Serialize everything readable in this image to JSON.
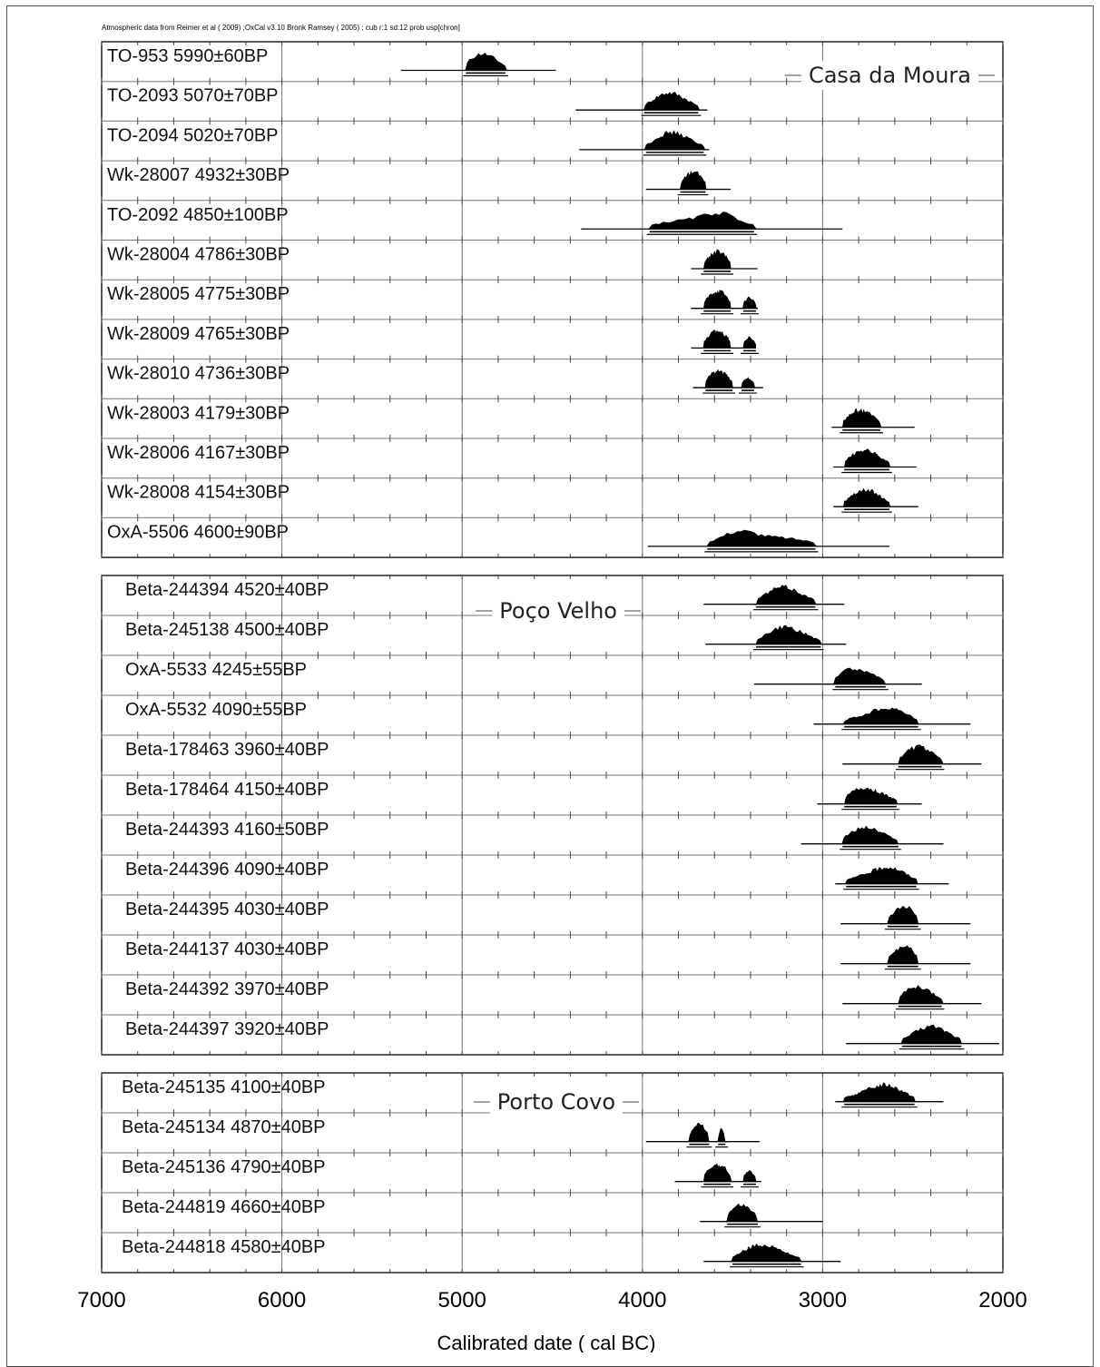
{
  "chart_data": {
    "type": "scatter",
    "subtype": "radiocarbon calibration multiplot (probability distributions with ranges)",
    "note": "Atmospheric data from Reimer et al  ( 2009) ;OxCal v3.10 Bronk Ramsey  ( 2005) ; cub r:1 sd:12 prob usp[chron]",
    "xlabel": "Calibrated date  ( cal BC)",
    "xlim": [
      7000,
      2000
    ],
    "x_reversed": true,
    "x_ticks": [
      "7000",
      "6000",
      "5000",
      "4000",
      "3000",
      "2000"
    ],
    "major_grid": [
      6000,
      5000,
      4000,
      3000
    ],
    "minor_tick_step": 200,
    "groups": [
      {
        "name": "Casa da Moura",
        "samples": [
          {
            "label": "TO-953  5990±60BP",
            "range_95": [
              5340,
              4480
            ],
            "peak": 4920,
            "mass": [
              [
                4980,
                4760
              ]
            ]
          },
          {
            "label": "TO-2093  5070±70BP",
            "range_95": [
              4370,
              3640
            ],
            "peak": 3860,
            "mass": [
              [
                3990,
                3690
              ]
            ]
          },
          {
            "label": "TO-2094  5020±70BP",
            "range_95": [
              4350,
              3630
            ],
            "peak": 3850,
            "mass": [
              [
                3980,
                3660
              ]
            ]
          },
          {
            "label": "Wk-28007  4932±30BP",
            "range_95": [
              3980,
              3510
            ],
            "peak": 3700,
            "mass": [
              [
                3790,
                3650
              ]
            ]
          },
          {
            "label": "TO-2092  4850±100BP",
            "range_95": [
              4340,
              2890
            ],
            "peak": 3560,
            "mass": [
              [
                3960,
                3380
              ]
            ]
          },
          {
            "label": "Wk-28004  4786±30BP",
            "range_95": [
              3730,
              3360
            ],
            "peak": 3570,
            "mass": [
              [
                3660,
                3510
              ]
            ]
          },
          {
            "label": "Wk-28005  4775±30BP",
            "range_95": [
              3730,
              3360
            ],
            "peak": 3570,
            "mass": [
              [
                3660,
                3510
              ],
              [
                3440,
                3370
              ]
            ]
          },
          {
            "label": "Wk-28009  4765±30BP",
            "range_95": [
              3730,
              3370
            ],
            "peak": 3580,
            "mass": [
              [
                3660,
                3510
              ],
              [
                3440,
                3370
              ]
            ]
          },
          {
            "label": "Wk-28010  4736±30BP",
            "range_95": [
              3720,
              3330
            ],
            "peak": 3600,
            "mass": [
              [
                3650,
                3500
              ],
              [
                3450,
                3380
              ]
            ]
          },
          {
            "label": "Wk-28003  4179±30BP",
            "range_95": [
              2950,
              2490
            ],
            "peak": 2800,
            "mass": [
              [
                2890,
                2680
              ]
            ]
          },
          {
            "label": "Wk-28006  4167±30BP",
            "range_95": [
              2940,
              2480
            ],
            "peak": 2790,
            "mass": [
              [
                2880,
                2630
              ]
            ]
          },
          {
            "label": "Wk-28008  4154±30BP",
            "range_95": [
              2940,
              2470
            ],
            "peak": 2780,
            "mass": [
              [
                2880,
                2630
              ]
            ]
          },
          {
            "label": "OxA-5506  4600±90BP",
            "range_95": [
              3970,
              2630
            ],
            "peak": 3480,
            "mass": [
              [
                3640,
                3040
              ]
            ]
          }
        ]
      },
      {
        "name": "Poço Velho",
        "samples": [
          {
            "label": "Beta-244394  4520±40BP",
            "range_95": [
              3660,
              2880
            ],
            "peak": 3230,
            "mass": [
              [
                3370,
                3040
              ]
            ]
          },
          {
            "label": "Beta-245138  4500±40BP",
            "range_95": [
              3650,
              2870
            ],
            "peak": 3220,
            "mass": [
              [
                3370,
                3010
              ]
            ]
          },
          {
            "label": "OxA-5533  4245±55BP",
            "range_95": [
              3380,
              2450
            ],
            "peak": 2880,
            "mass": [
              [
                2930,
                2650
              ]
            ]
          },
          {
            "label": "OxA-5532  4090±55BP",
            "range_95": [
              3050,
              2180
            ],
            "peak": 2620,
            "mass": [
              [
                2880,
                2470
              ]
            ]
          },
          {
            "label": "Beta-178463  3960±40BP",
            "range_95": [
              2890,
              2120
            ],
            "peak": 2480,
            "mass": [
              [
                2580,
                2340
              ]
            ]
          },
          {
            "label": "Beta-178464  4150±40BP",
            "range_95": [
              3030,
              2450
            ],
            "peak": 2800,
            "mass": [
              [
                2880,
                2590
              ]
            ]
          },
          {
            "label": "Beta-244393  4160±50BP",
            "range_95": [
              3120,
              2330
            ],
            "peak": 2790,
            "mass": [
              [
                2890,
                2580
              ]
            ]
          },
          {
            "label": "Beta-244396  4090±40BP",
            "range_95": [
              2930,
              2300
            ],
            "peak": 2620,
            "mass": [
              [
                2870,
                2480
              ]
            ]
          },
          {
            "label": "Beta-244395  4030±40BP",
            "range_95": [
              2900,
              2180
            ],
            "peak": 2520,
            "mass": [
              [
                2640,
                2470
              ]
            ]
          },
          {
            "label": "Beta-244137  4030±40BP",
            "range_95": [
              2900,
              2180
            ],
            "peak": 2520,
            "mass": [
              [
                2640,
                2470
              ]
            ]
          },
          {
            "label": "Beta-244392  3970±40BP",
            "range_95": [
              2890,
              2120
            ],
            "peak": 2500,
            "mass": [
              [
                2580,
                2340
              ]
            ]
          },
          {
            "label": "Beta-244397  3920±40BP",
            "range_95": [
              2870,
              2020
            ],
            "peak": 2400,
            "mass": [
              [
                2560,
                2230
              ]
            ]
          }
        ]
      },
      {
        "name": "Porto Covo",
        "samples": [
          {
            "label": "Beta-245135  4100±40BP",
            "range_95": [
              2930,
              2330
            ],
            "peak": 2640,
            "mass": [
              [
                2880,
                2490
              ]
            ]
          },
          {
            "label": "Beta-245134  4870±40BP",
            "range_95": [
              3980,
              3350
            ],
            "peak": 3680,
            "mass": [
              [
                3740,
                3630
              ],
              [
                3580,
                3540
              ]
            ]
          },
          {
            "label": "Beta-245136  4790±40BP",
            "range_95": [
              3820,
              3340
            ],
            "peak": 3580,
            "mass": [
              [
                3660,
                3510
              ],
              [
                3440,
                3370
              ]
            ]
          },
          {
            "label": "Beta-244819  4660±40BP",
            "range_95": [
              3680,
              3000
            ],
            "peak": 3480,
            "mass": [
              [
                3530,
                3360
              ]
            ]
          },
          {
            "label": "Beta-244818  4580±40BP",
            "range_95": [
              3660,
              2900
            ],
            "peak": 3360,
            "mass": [
              [
                3500,
                3120
              ]
            ]
          }
        ]
      }
    ]
  }
}
